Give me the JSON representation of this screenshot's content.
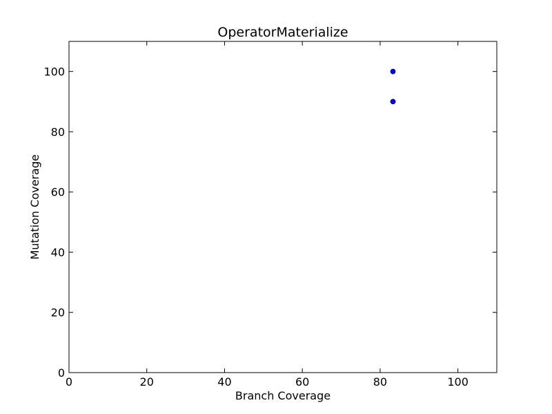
{
  "chart_data": {
    "type": "scatter",
    "title": "OperatorMaterialize",
    "xlabel": "Branch Coverage",
    "ylabel": "Mutation Coverage",
    "xlim": [
      0,
      110
    ],
    "ylim": [
      0,
      110
    ],
    "xticks": [
      0,
      20,
      40,
      60,
      80,
      100
    ],
    "yticks": [
      0,
      20,
      40,
      60,
      80,
      100
    ],
    "grid": false,
    "marker_color": "#0000ff",
    "marker_edge_color": "#000000",
    "points": [
      {
        "x": 83.3,
        "y": 100
      },
      {
        "x": 83.3,
        "y": 90
      }
    ]
  }
}
